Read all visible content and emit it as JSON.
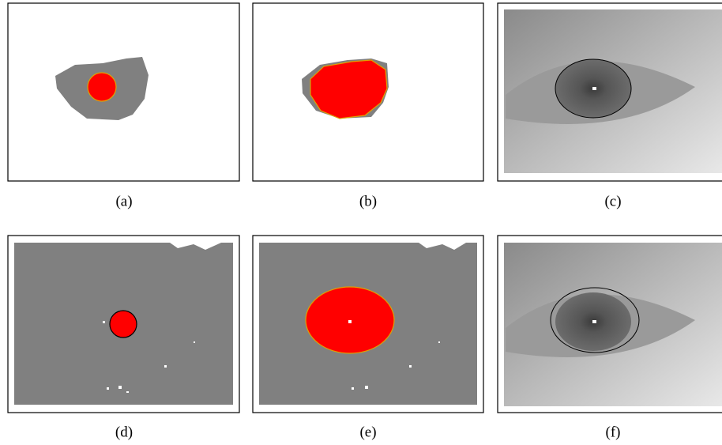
{
  "figure": {
    "panels": [
      {
        "caption": "(a)"
      },
      {
        "caption": "(b)"
      },
      {
        "caption": "(c)"
      },
      {
        "caption": "(d)"
      },
      {
        "caption": "(e)"
      },
      {
        "caption": "(f)"
      }
    ]
  }
}
